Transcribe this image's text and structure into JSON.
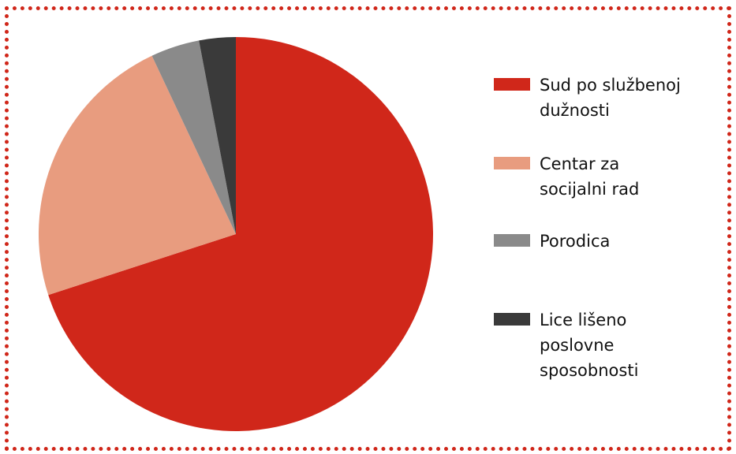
{
  "chart_data": {
    "type": "pie",
    "categories": [
      "Sud po službenoj dužnosti",
      "Centar za socijalni rad",
      "Porodica",
      "Lice lišeno poslovne sposobnosti"
    ],
    "values": [
      70,
      23,
      4,
      3
    ],
    "colors": [
      "#d0271a",
      "#e89c7f",
      "#8a8a8a",
      "#3a3a3a"
    ],
    "legend": "right"
  }
}
